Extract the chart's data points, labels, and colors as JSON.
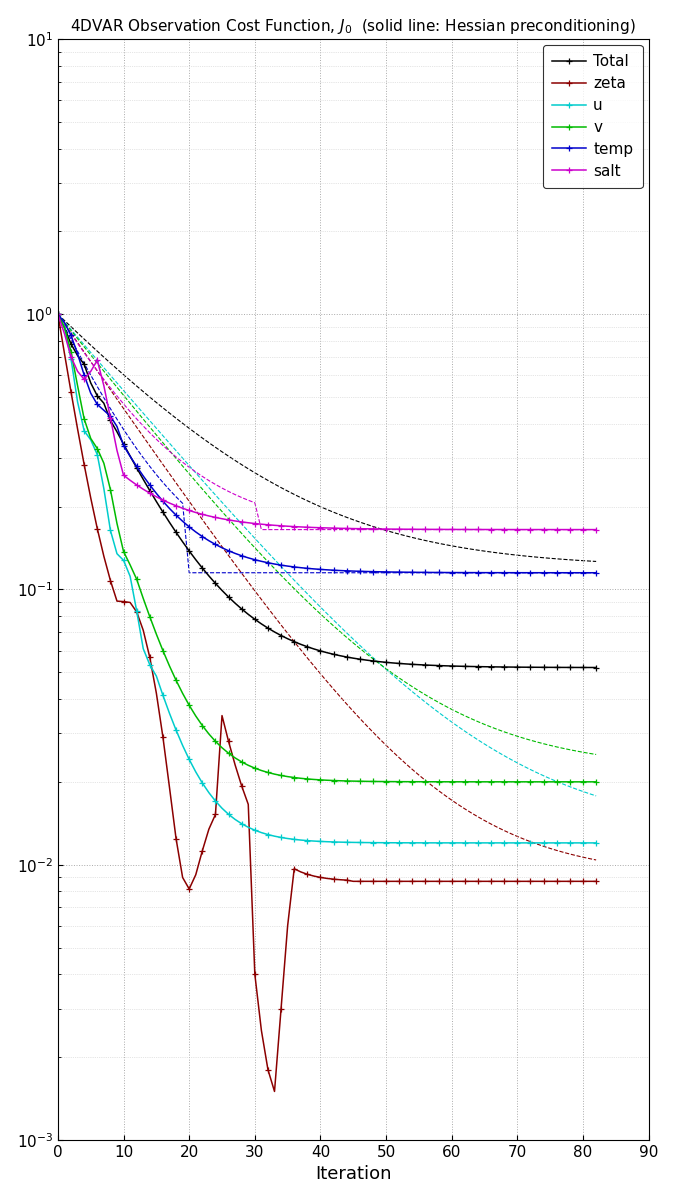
{
  "title": "4DVAR Observation Cost Function, $J_0$  (solid line: Hessian preconditioning)",
  "xlabel": "Iteration",
  "xlim": [
    0,
    90
  ],
  "ylim": [
    0.001,
    10.0
  ],
  "series_colors": {
    "Total": "#000000",
    "zeta": "#8B0000",
    "u": "#00CCCC",
    "v": "#00BB00",
    "temp": "#0000CC",
    "salt": "#CC00CC"
  },
  "legend_labels": [
    "Total",
    "zeta",
    "u",
    "v",
    "temp",
    "salt"
  ],
  "grid_color": "#AAAAAA",
  "bg_color": "#FFFFFF",
  "figsize": [
    6.75,
    12.0
  ],
  "dpi": 100
}
